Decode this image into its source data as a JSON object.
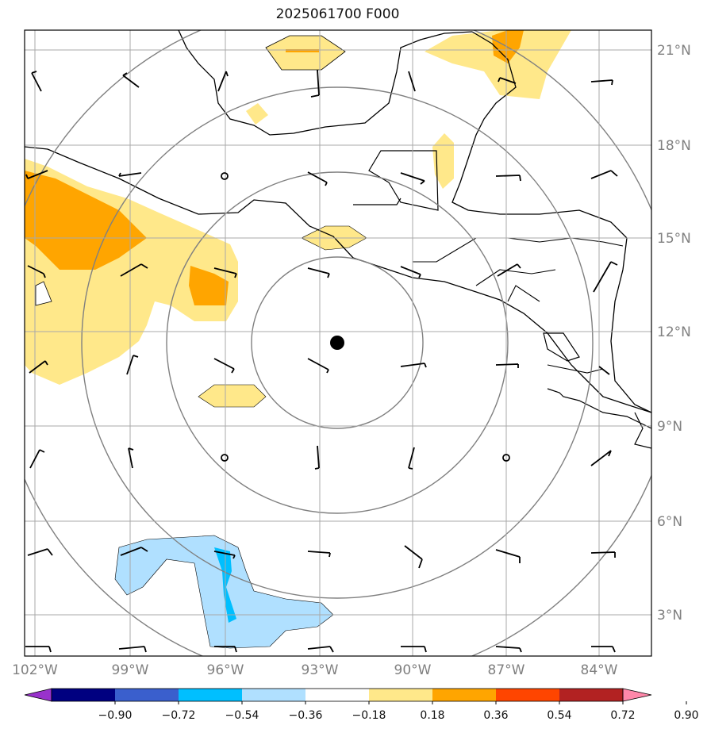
{
  "title": "2025061700 F000",
  "longitude_labels": [
    "102°W",
    "99°W",
    "96°W",
    "93°W",
    "90°W",
    "87°W",
    "84°W"
  ],
  "latitude_labels": [
    "21°N",
    "18°N",
    "15°N",
    "12°N",
    "9°N",
    "6°N",
    "3°N"
  ],
  "colorbar": {
    "ticks": [
      "−0.90",
      "−0.72",
      "−0.54",
      "−0.36",
      "−0.18",
      "0.18",
      "0.36",
      "0.54",
      "0.72",
      "0.90"
    ],
    "colors": [
      "#9932cc",
      "#000080",
      "#3a5fcd",
      "#00bfff",
      "#b0e0ff",
      "#ffffff",
      "#ffe88a",
      "#ffa500",
      "#ff4500",
      "#b22222",
      "#ff88aa"
    ]
  },
  "map_layers": {
    "storm_center": "black dot",
    "range_rings": "gray concentric circles",
    "wind_barbs": "black",
    "coastlines": "black"
  }
}
